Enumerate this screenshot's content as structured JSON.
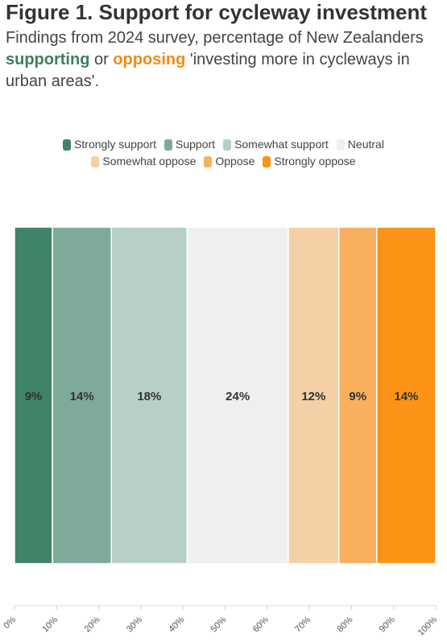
{
  "header": {
    "title": "Figure 1. Support for cycleway investment",
    "subtitle_pre": "Findings from 2024 survey, percentage of New Zealanders ",
    "supporting": "supporting",
    "or": " or ",
    "opposing": "opposing",
    "subtitle_post": " 'investing more in cycleways in urban areas'."
  },
  "colors": {
    "support_accent": "#3e7e5f",
    "oppose_accent": "#f48b14"
  },
  "chart_data": {
    "type": "bar",
    "orientation": "horizontal-stacked",
    "x_unit": "percent",
    "xlim": [
      0,
      100
    ],
    "x_ticks": [
      "0%",
      "10%",
      "20%",
      "30%",
      "40%",
      "50%",
      "60%",
      "70%",
      "80%",
      "90%",
      "100%"
    ],
    "legend_position": "top",
    "series": [
      {
        "name": "Strongly support",
        "value": 9,
        "label": "9%",
        "color": "#3f8468"
      },
      {
        "name": "Support",
        "value": 14,
        "label": "14%",
        "color": "#7faa99"
      },
      {
        "name": "Somewhat support",
        "value": 18,
        "label": "18%",
        "color": "#b8cfc5"
      },
      {
        "name": "Neutral",
        "value": 24,
        "label": "24%",
        "color": "#efefef"
      },
      {
        "name": "Somewhat oppose",
        "value": 12,
        "label": "12%",
        "color": "#f5d0a6"
      },
      {
        "name": "Oppose",
        "value": 9,
        "label": "9%",
        "color": "#f8b05f"
      },
      {
        "name": "Strongly oppose",
        "value": 14,
        "label": "14%",
        "color": "#fb9316"
      }
    ]
  }
}
